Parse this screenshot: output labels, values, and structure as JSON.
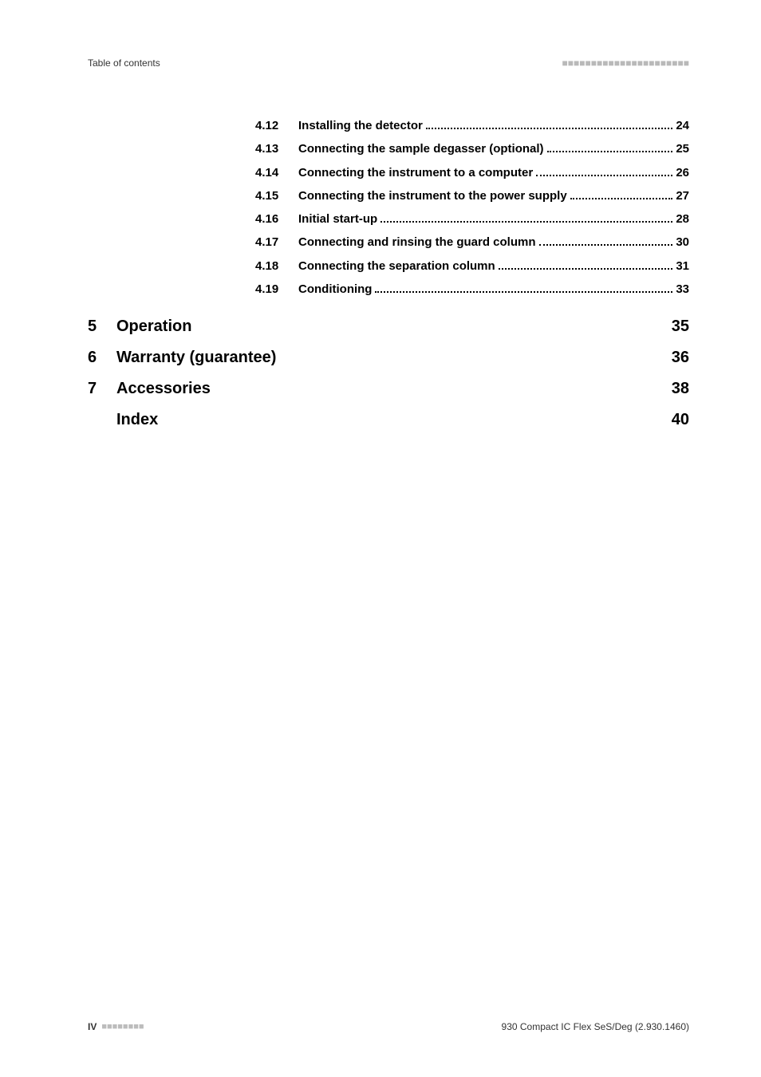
{
  "header": {
    "left": "Table of contents",
    "right_dashes": "■■■■■■■■■■■■■■■■■■■■■■"
  },
  "toc": {
    "subsections": [
      {
        "num": "4.12",
        "title": "Installing the detector",
        "page": "24"
      },
      {
        "num": "4.13",
        "title": "Connecting the sample degasser (optional)",
        "page": "25"
      },
      {
        "num": "4.14",
        "title": "Connecting the instrument to a computer",
        "page": "26"
      },
      {
        "num": "4.15",
        "title": "Connecting the instrument to the power supply",
        "page": "27"
      },
      {
        "num": "4.16",
        "title": "Initial start-up",
        "page": "28"
      },
      {
        "num": "4.17",
        "title": "Connecting and rinsing the guard column",
        "page": "30"
      },
      {
        "num": "4.18",
        "title": "Connecting the separation column",
        "page": "31"
      },
      {
        "num": "4.19",
        "title": "Conditioning",
        "page": "33"
      }
    ],
    "chapters": [
      {
        "num": "5",
        "title": "Operation",
        "page": "35"
      },
      {
        "num": "6",
        "title": "Warranty (guarantee)",
        "page": "36"
      },
      {
        "num": "7",
        "title": "Accessories",
        "page": "38"
      }
    ],
    "index": {
      "title": "Index",
      "page": "40"
    }
  },
  "footer": {
    "left_label": "IV",
    "left_dashes": "■■■■■■■■",
    "right": "930 Compact IC Flex SeS/Deg (2.930.1460)"
  }
}
